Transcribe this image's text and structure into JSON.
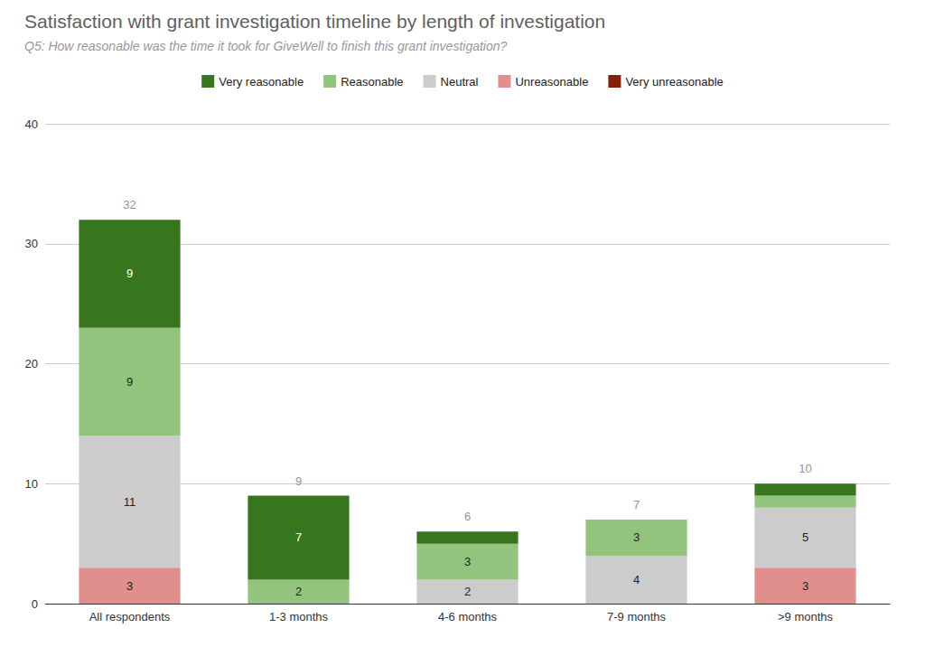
{
  "chart_data": {
    "type": "bar",
    "title": "Satisfaction with grant investigation timeline by length of investigation",
    "subtitle": "Q5: How reasonable was the time it took for GiveWell to finish this grant investigation?",
    "categories": [
      "All respondents",
      "1-3 months",
      "4-6 months",
      "7-9 months",
      ">9 months"
    ],
    "series": [
      {
        "name": "Very reasonable",
        "color": "#38761d",
        "values": [
          9,
          7,
          1,
          0,
          1
        ],
        "value_labels": [
          "9",
          "7",
          null,
          null,
          null
        ]
      },
      {
        "name": "Reasonable",
        "color": "#93c47d",
        "values": [
          9,
          2,
          3,
          3,
          1
        ],
        "value_labels": [
          "9",
          "2",
          "3",
          "3",
          null
        ]
      },
      {
        "name": "Neutral",
        "color": "#cccccc",
        "values": [
          11,
          0,
          2,
          4,
          5
        ],
        "value_labels": [
          "11",
          null,
          "2",
          "4",
          "5"
        ]
      },
      {
        "name": "Unreasonable",
        "color": "#e08f8d",
        "values": [
          3,
          0,
          0,
          0,
          3
        ],
        "value_labels": [
          "3",
          null,
          null,
          null,
          "3"
        ]
      },
      {
        "name": "Very unreasonable",
        "color": "#85200c",
        "values": [
          0,
          0,
          0,
          0,
          0
        ],
        "value_labels": [
          null,
          null,
          null,
          null,
          null
        ]
      }
    ],
    "totals": [
      32,
      9,
      6,
      7,
      10
    ],
    "stacked": true,
    "data_labels": true,
    "legend": "top",
    "grid": true,
    "ylim": [
      0,
      40
    ],
    "yticks": [
      0,
      10,
      20,
      30,
      40
    ]
  }
}
